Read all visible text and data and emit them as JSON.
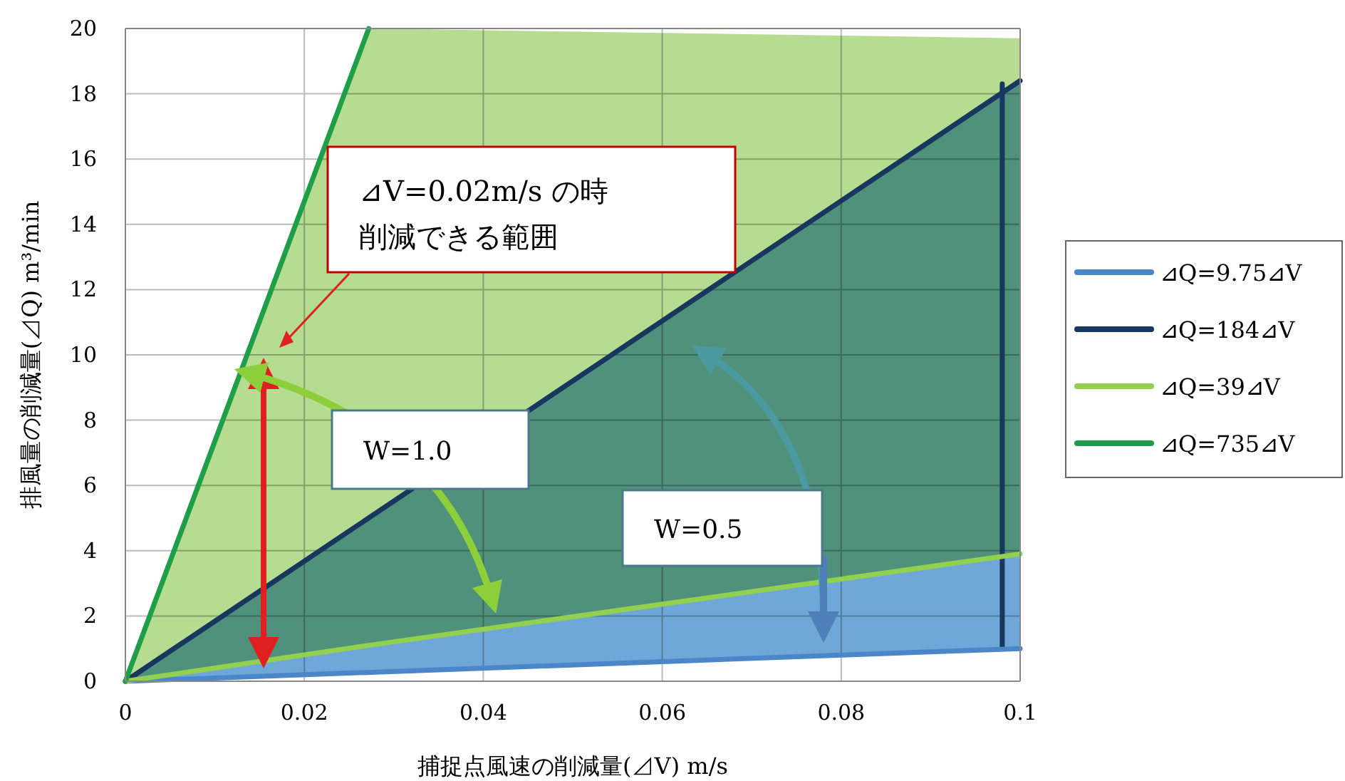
{
  "chart_data": {
    "type": "line",
    "xlabel": "捕捉点風速の削減量(⊿V) m/s",
    "ylabel": "排風量の削減量(⊿Q) m³/min",
    "xlim": [
      0,
      0.1
    ],
    "xticks": [
      0,
      0.02,
      0.04,
      0.06,
      0.08,
      0.1
    ],
    "ylim": [
      0,
      20
    ],
    "yticks": [
      0,
      2,
      4,
      6,
      8,
      10,
      12,
      14,
      16,
      18,
      20
    ],
    "grid": true,
    "legend": "right",
    "marker": "none",
    "line_style": "solid",
    "series": [
      {
        "x": [
          0.098,
          0.098
        ],
        "values": [
          1.0,
          18.3
        ],
        "color": "#17375e"
      },
      {
        "name": "⊿Q=9.75⊿V",
        "x": [
          0,
          0.1
        ],
        "values": [
          0,
          1.0
        ],
        "lower": [
          0,
          1.0
        ],
        "upper": [
          0,
          18.4
        ],
        "color": "#4a86c8"
      },
      {
        "name": "⊿Q=184⊿V",
        "x": [
          0,
          0.1
        ],
        "values": [
          0,
          18.4
        ],
        "color": "#17375e"
      },
      {
        "name": "⊿Q=39⊿V",
        "x": [
          0,
          0.0272,
          0.1
        ],
        "values": [
          0,
          1.1,
          3.9
        ],
        "lower": [
          0,
          1.1,
          3.9
        ],
        "upper": [
          0,
          20,
          19.7
        ],
        "color": "#92d050"
      },
      {
        "name": "⊿Q=735⊿V",
        "x": [
          0,
          0.0272
        ],
        "values": [
          0,
          20
        ],
        "color": "#1e9e48"
      }
    ],
    "annotations": [
      "⊿V=0.02m/s の時",
      "削減できる範囲",
      "W=1.0",
      "W=0.5"
    ]
  }
}
